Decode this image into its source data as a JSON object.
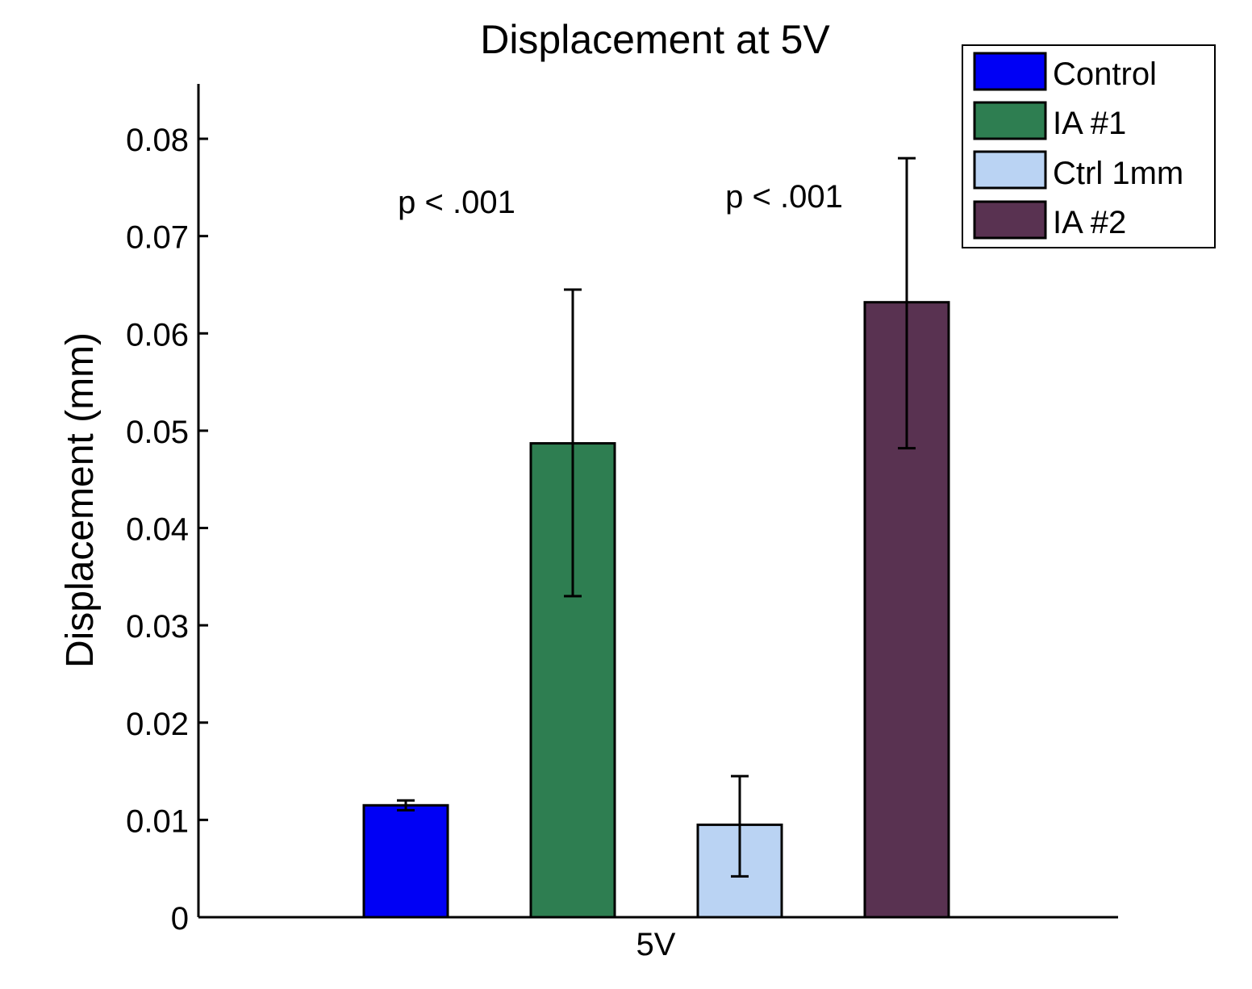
{
  "chart_data": {
    "type": "bar",
    "title": "Displacement at 5V",
    "xlabel": "",
    "ylabel": "Displacement (mm)",
    "categories": [
      "5V"
    ],
    "ylim": [
      0,
      0.085
    ],
    "yticks": [
      0,
      0.01,
      0.02,
      0.03,
      0.04,
      0.05,
      0.06,
      0.07,
      0.08
    ],
    "ytick_labels": [
      "0",
      "0.01",
      "0.02",
      "0.03",
      "0.04",
      "0.05",
      "0.06",
      "0.07",
      "0.08"
    ],
    "grid": false,
    "legend_position": "top-right",
    "series": [
      {
        "name": "Control",
        "color": "#0000f5",
        "values": [
          0.0115
        ],
        "error": [
          [
            0.011,
            0.012
          ]
        ]
      },
      {
        "name": "IA #1",
        "color": "#2e7e51",
        "values": [
          0.0487
        ],
        "error": [
          [
            0.033,
            0.0645
          ]
        ]
      },
      {
        "name": "Ctrl 1mm",
        "color": "#bad3f3",
        "values": [
          0.0095
        ],
        "error": [
          [
            0.0042,
            0.0145
          ]
        ]
      },
      {
        "name": "IA #2",
        "color": "#593251",
        "values": [
          0.0632
        ],
        "error": [
          [
            0.0482,
            0.078
          ]
        ]
      }
    ],
    "annotations": [
      {
        "text": "p < .001",
        "between": [
          "Control",
          "IA #1"
        ]
      },
      {
        "text": "p < .001",
        "between": [
          "Ctrl 1mm",
          "IA #2"
        ]
      }
    ]
  }
}
